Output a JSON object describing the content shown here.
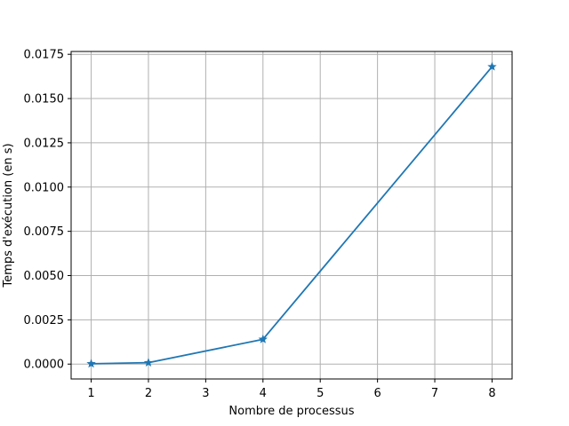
{
  "chart_data": {
    "type": "line",
    "title": "",
    "xlabel": "Nombre de processus",
    "ylabel": "Temps d'exécution (en s)",
    "xlim": [
      0.65,
      8.35
    ],
    "ylim": [
      -0.00084,
      0.01766
    ],
    "xticks": [
      1,
      2,
      3,
      4,
      5,
      6,
      7,
      8
    ],
    "xtick_labels": [
      "1",
      "2",
      "3",
      "4",
      "5",
      "6",
      "7",
      "8"
    ],
    "yticks": [
      0.0,
      0.0025,
      0.005,
      0.0075,
      0.01,
      0.0125,
      0.015,
      0.0175
    ],
    "ytick_labels": [
      "0.0000",
      "0.0025",
      "0.0050",
      "0.0075",
      "0.0100",
      "0.0125",
      "0.0150",
      "0.0175"
    ],
    "grid": true,
    "series": [
      {
        "x": [
          1,
          2,
          4,
          8
        ],
        "y": [
          2e-05,
          8e-05,
          0.0014,
          0.0168
        ],
        "color": "#1f77b4",
        "marker": "star"
      }
    ]
  }
}
